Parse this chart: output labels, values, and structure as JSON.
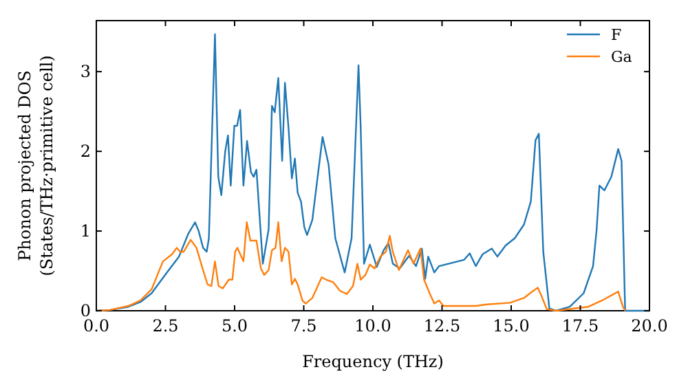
{
  "chart_data": {
    "type": "line",
    "xlabel": "Frequency (THz)",
    "ylabel": "Phonon projected DOS\n(States/THz·primitive cell)",
    "xlim": [
      0,
      20
    ],
    "ylim": [
      0,
      3.64
    ],
    "xticks": [
      {
        "value": 0,
        "label": "0.0"
      },
      {
        "value": 2.5,
        "label": "2.5"
      },
      {
        "value": 5,
        "label": "5.0"
      },
      {
        "value": 7.5,
        "label": "7.5"
      },
      {
        "value": 10,
        "label": "10.0"
      },
      {
        "value": 12.5,
        "label": "12.5"
      },
      {
        "value": 15,
        "label": "15.0"
      },
      {
        "value": 17.5,
        "label": "17.5"
      },
      {
        "value": 20,
        "label": "20.0"
      }
    ],
    "yticks": [
      0,
      1,
      2,
      3
    ],
    "grid": false,
    "legend": "top right",
    "marker": "none",
    "line_style": "solid",
    "series": [
      {
        "name": "F",
        "color": "#1f77b4",
        "x": [
          0,
          0.5,
          1.16,
          1.6,
          2.0,
          2.49,
          2.99,
          3.33,
          3.57,
          3.7,
          3.86,
          3.99,
          4.07,
          4.29,
          4.41,
          4.52,
          4.66,
          4.76,
          4.86,
          4.99,
          5.09,
          5.2,
          5.32,
          5.45,
          5.59,
          5.69,
          5.79,
          6.02,
          6.23,
          6.35,
          6.45,
          6.58,
          6.72,
          6.82,
          6.95,
          7.07,
          7.18,
          7.28,
          7.4,
          7.52,
          7.62,
          7.81,
          8.18,
          8.4,
          8.64,
          8.98,
          9.23,
          9.48,
          9.56,
          9.68,
          9.89,
          10.14,
          10.39,
          10.56,
          10.72,
          10.97,
          11.31,
          11.56,
          11.77,
          11.89,
          12.0,
          12.22,
          12.39,
          13.3,
          13.5,
          13.72,
          13.97,
          14.3,
          14.5,
          14.8,
          15.13,
          15.46,
          15.71,
          15.88,
          16.0,
          16.16,
          16.38,
          16.62,
          17.12,
          17.62,
          17.96,
          18.09,
          18.19,
          18.37,
          18.62,
          18.87,
          18.99,
          19.12,
          20
        ],
        "values": [
          0,
          0.01,
          0.05,
          0.11,
          0.22,
          0.45,
          0.68,
          0.97,
          1.11,
          1.0,
          0.79,
          0.74,
          0.91,
          3.47,
          1.68,
          1.45,
          2.0,
          2.2,
          1.57,
          2.32,
          2.32,
          2.52,
          1.57,
          2.13,
          1.74,
          1.68,
          1.77,
          0.59,
          1.02,
          2.57,
          2.49,
          2.92,
          1.88,
          2.86,
          2.29,
          1.66,
          1.91,
          1.48,
          1.37,
          1.05,
          0.95,
          1.14,
          2.18,
          1.83,
          0.91,
          0.48,
          0.91,
          3.08,
          2.29,
          0.59,
          0.83,
          0.55,
          0.76,
          0.85,
          0.59,
          0.53,
          0.69,
          0.56,
          0.78,
          0.4,
          0.68,
          0.48,
          0.56,
          0.64,
          0.72,
          0.56,
          0.71,
          0.78,
          0.68,
          0.82,
          0.91,
          1.08,
          1.37,
          2.14,
          2.22,
          0.74,
          0.03,
          0,
          0.05,
          0.22,
          0.56,
          1.02,
          1.57,
          1.51,
          1.68,
          2.03,
          1.88,
          0,
          0
        ]
      },
      {
        "name": "Ga",
        "color": "#ff7f0e",
        "x": [
          0,
          0.5,
          1.16,
          1.6,
          2.0,
          2.41,
          2.74,
          2.91,
          3.03,
          3.16,
          3.41,
          3.62,
          3.86,
          4.02,
          4.16,
          4.29,
          4.42,
          4.57,
          4.79,
          4.92,
          5.02,
          5.1,
          5.32,
          5.44,
          5.57,
          5.79,
          5.95,
          6.07,
          6.23,
          6.35,
          6.48,
          6.58,
          6.7,
          6.82,
          6.95,
          7.07,
          7.18,
          7.28,
          7.45,
          7.57,
          7.81,
          8.15,
          8.31,
          8.56,
          8.81,
          9.06,
          9.28,
          9.44,
          9.56,
          9.73,
          9.89,
          10.06,
          10.27,
          10.47,
          10.61,
          10.72,
          10.94,
          11.27,
          11.47,
          11.72,
          11.85,
          12.05,
          12.22,
          12.39,
          12.55,
          13.47,
          13.72,
          14.13,
          14.96,
          15.46,
          15.8,
          15.96,
          16.09,
          16.29,
          16.62,
          17.79,
          18.29,
          18.87,
          19.04,
          19.12
        ],
        "values": [
          0,
          0.01,
          0.06,
          0.13,
          0.27,
          0.62,
          0.71,
          0.79,
          0.74,
          0.74,
          0.89,
          0.79,
          0.51,
          0.33,
          0.31,
          0.62,
          0.31,
          0.28,
          0.39,
          0.39,
          0.74,
          0.79,
          0.62,
          1.11,
          0.88,
          0.88,
          0.53,
          0.45,
          0.51,
          0.76,
          0.79,
          1.11,
          0.62,
          0.79,
          0.74,
          0.33,
          0.4,
          0.33,
          0.13,
          0.09,
          0.16,
          0.42,
          0.39,
          0.36,
          0.25,
          0.21,
          0.31,
          0.59,
          0.39,
          0.45,
          0.58,
          0.53,
          0.68,
          0.74,
          0.94,
          0.74,
          0.51,
          0.76,
          0.59,
          0.78,
          0.39,
          0.22,
          0.09,
          0.13,
          0.06,
          0.06,
          0.06,
          0.08,
          0.1,
          0.16,
          0.25,
          0.29,
          0.19,
          0.02,
          0,
          0.05,
          0.13,
          0.24,
          0.05,
          0
        ]
      }
    ]
  }
}
